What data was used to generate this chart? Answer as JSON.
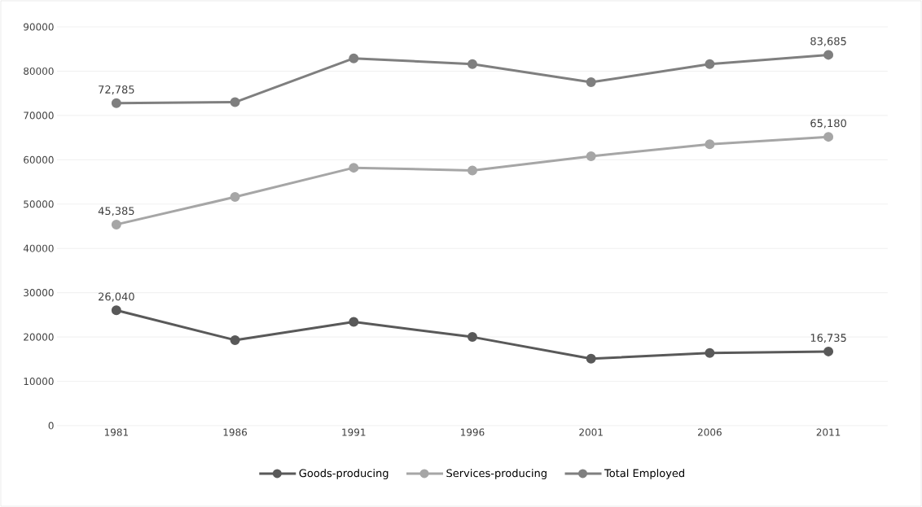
{
  "chart_data": {
    "type": "line",
    "categories": [
      "1981",
      "1986",
      "1991",
      "1996",
      "2001",
      "2006",
      "2011"
    ],
    "series": [
      {
        "name": "Goods-producing",
        "color": "#595959",
        "values": [
          26040,
          19300,
          23400,
          20000,
          15100,
          16400,
          16735
        ],
        "value_labels": [
          "26,040",
          null,
          null,
          null,
          null,
          null,
          "16,735"
        ]
      },
      {
        "name": "Services-producing",
        "color": "#a6a6a6",
        "values": [
          45385,
          51600,
          58200,
          57600,
          60800,
          63500,
          65180
        ],
        "value_labels": [
          "45,385",
          null,
          null,
          null,
          null,
          null,
          "65,180"
        ]
      },
      {
        "name": "Total Employed",
        "color": "#7f7f7f",
        "values": [
          72785,
          73000,
          82900,
          81600,
          77500,
          81600,
          83685
        ],
        "value_labels": [
          "72,785",
          null,
          null,
          null,
          null,
          null,
          "83,685"
        ]
      }
    ],
    "ylim": [
      0,
      90000
    ],
    "yticks": [
      0,
      10000,
      20000,
      30000,
      40000,
      50000,
      60000,
      70000,
      80000,
      90000
    ],
    "grid": "y",
    "legend": "bottom",
    "marker": "circle",
    "line_style": "solid"
  }
}
